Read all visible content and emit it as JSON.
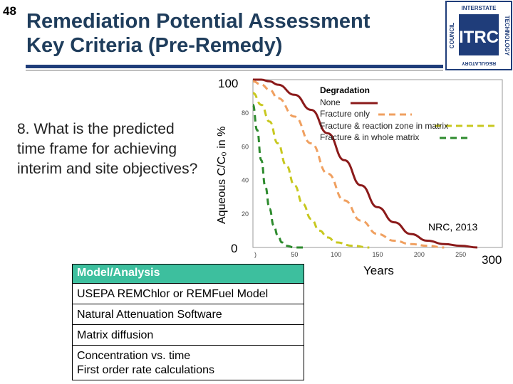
{
  "slide_number": "48",
  "title_line1": "Remediation Potential Assessment",
  "title_line2": "Key Criteria (Pre-Remedy)",
  "logo": {
    "top": "INTERSTATE",
    "left": "COUNCIL",
    "right": "TECHNOLOGY",
    "bottom": "REGULATORY",
    "mark": "ITRC"
  },
  "question": {
    "number": "8.",
    "text": "What is the predicted time frame for achieving interim and site objectives?"
  },
  "source": "NRC, 2013",
  "model_box": {
    "header": "Model/Analysis",
    "items": [
      "USEPA REMChlor or REMFuel Model",
      "Natural Attenuation Software",
      "Matrix diffusion",
      "Concentration vs. time",
      "First order rate calculations"
    ]
  },
  "chart_data": {
    "type": "line",
    "title": "",
    "xlabel": "Years",
    "ylabel": "Aqueous C/C₀ in %",
    "xlim": [
      0,
      300
    ],
    "ylim": [
      0,
      100
    ],
    "x_ticks": [
      "0",
      "50",
      "100",
      "150",
      "200",
      "250",
      "300"
    ],
    "y_ticks": [
      "0",
      "20",
      "40",
      "60",
      "80",
      "100"
    ],
    "legend_title": "Degradation",
    "legend_position": "top-right",
    "series": [
      {
        "name": "None",
        "color": "#8b1a1a",
        "dash": "solid",
        "x": [
          0,
          10,
          20,
          30,
          50,
          70,
          90,
          110,
          130,
          150,
          170,
          190,
          210,
          230,
          250,
          270
        ],
        "y": [
          100,
          100,
          99,
          97,
          91,
          82,
          68,
          52,
          37,
          24,
          15,
          8,
          4,
          2,
          1,
          0
        ]
      },
      {
        "name": "Fracture only",
        "color": "#f0a060",
        "dash": "dashed",
        "x": [
          0,
          10,
          20,
          30,
          50,
          70,
          90,
          110,
          130,
          150,
          170,
          190,
          210,
          230
        ],
        "y": [
          99,
          97,
          94,
          89,
          78,
          62,
          44,
          28,
          16,
          8,
          4,
          2,
          1,
          0
        ]
      },
      {
        "name": "Fracture & reaction zone in matrix",
        "color": "#c8c820",
        "dash": "dashed",
        "x": [
          0,
          10,
          20,
          30,
          40,
          50,
          60,
          70,
          80,
          90,
          100,
          120,
          140
        ],
        "y": [
          92,
          85,
          75,
          62,
          49,
          37,
          26,
          17,
          10,
          6,
          3,
          1,
          0
        ]
      },
      {
        "name": "Fracture & in whole matrix",
        "color": "#2e8b2e",
        "dash": "dashed",
        "x": [
          0,
          5,
          10,
          15,
          20,
          25,
          30,
          35,
          40,
          50,
          60
        ],
        "y": [
          85,
          70,
          52,
          36,
          23,
          13,
          7,
          3,
          1,
          0,
          0
        ]
      }
    ]
  }
}
